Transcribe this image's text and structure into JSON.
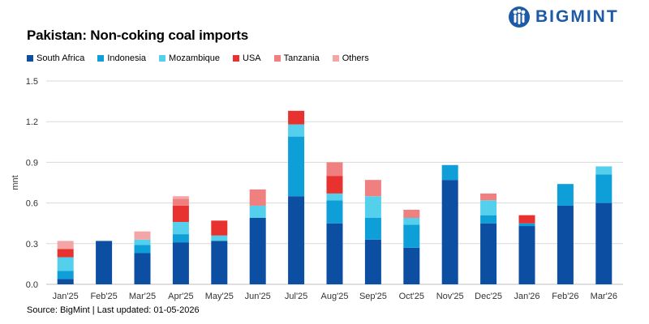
{
  "title": "Pakistan: Non-coking coal imports",
  "brand": {
    "name": "BIGMINT",
    "color": "#1d5aa7"
  },
  "source": "Source: BigMint | Last updated: 01-05-2026",
  "chart_data": {
    "type": "bar",
    "stacked": true,
    "title": "Pakistan: Non-coking coal imports",
    "xlabel": "",
    "ylabel": "mnt",
    "ylim": [
      0,
      1.5
    ],
    "yticks": [
      "0.0",
      "0.3",
      "0.6",
      "0.9",
      "1.2",
      "1.5"
    ],
    "grid": true,
    "legend_position": "top-left",
    "categories": [
      "Jan'25",
      "Feb'25",
      "Mar'25",
      "Apr'25",
      "May'25",
      "Jun'25",
      "Jul'25",
      "Aug'25",
      "Sep'25",
      "Oct'25",
      "Nov'25",
      "Dec'25",
      "Jan'26",
      "Feb'26",
      "Mar'26"
    ],
    "series": [
      {
        "name": "South Africa",
        "color": "#0b4ea2",
        "values": [
          0.04,
          0.32,
          0.23,
          0.31,
          0.32,
          0.49,
          0.65,
          0.45,
          0.33,
          0.27,
          0.77,
          0.45,
          0.43,
          0.58,
          0.6
        ]
      },
      {
        "name": "Indonesia",
        "color": "#0f9fd8",
        "values": [
          0.06,
          0,
          0.06,
          0.06,
          0,
          0,
          0.44,
          0.17,
          0.16,
          0.17,
          0.11,
          0.06,
          0.02,
          0.16,
          0.21
        ]
      },
      {
        "name": "Mozambique",
        "color": "#55d0ec",
        "values": [
          0.1,
          0,
          0.04,
          0.09,
          0.04,
          0.09,
          0.09,
          0.05,
          0.16,
          0.05,
          0,
          0.11,
          0,
          0,
          0.06
        ]
      },
      {
        "name": "USA",
        "color": "#e8322f",
        "values": [
          0.06,
          0,
          0,
          0.12,
          0.11,
          0,
          0.1,
          0.13,
          0,
          0,
          0,
          0,
          0.06,
          0,
          0
        ]
      },
      {
        "name": "Tanzania",
        "color": "#f08080",
        "values": [
          0,
          0,
          0,
          0.05,
          0,
          0.12,
          0,
          0.1,
          0.12,
          0.06,
          0,
          0.05,
          0,
          0,
          0
        ]
      },
      {
        "name": "Others",
        "color": "#f4a6a6",
        "values": [
          0.06,
          0,
          0.06,
          0.02,
          0,
          0,
          0,
          0,
          0,
          0,
          0,
          0,
          0,
          0,
          0
        ]
      }
    ]
  }
}
